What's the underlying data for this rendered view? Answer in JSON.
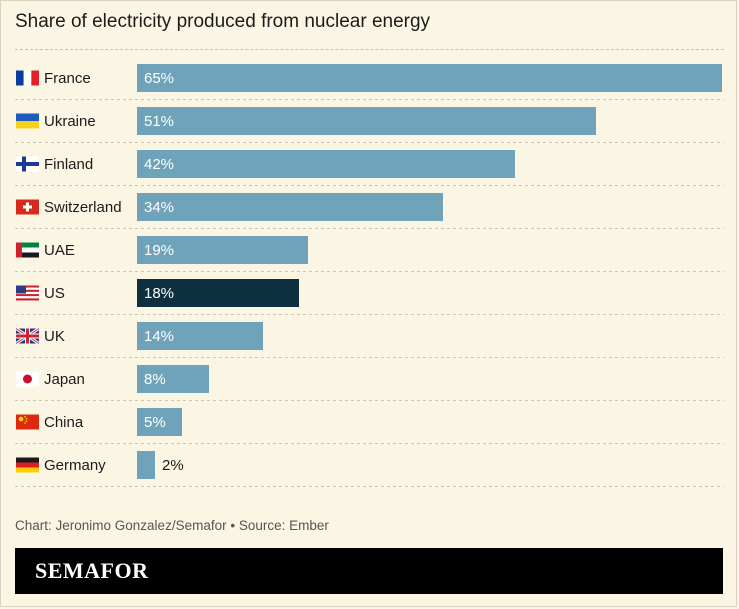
{
  "chart_data": {
    "type": "bar",
    "orientation": "horizontal",
    "title": "Share of electricity produced from nuclear energy",
    "categories": [
      "France",
      "Ukraine",
      "Finland",
      "Switzerland",
      "UAE",
      "US",
      "UK",
      "Japan",
      "China",
      "Germany"
    ],
    "values": [
      65,
      51,
      42,
      34,
      19,
      18,
      14,
      8,
      5,
      2
    ],
    "value_labels": [
      "65%",
      "51%",
      "42%",
      "34%",
      "19%",
      "18%",
      "14%",
      "8%",
      "5%",
      "2%"
    ],
    "flag_icons": [
      "france-flag-icon",
      "ukraine-flag-icon",
      "finland-flag-icon",
      "switzerland-flag-icon",
      "uae-flag-icon",
      "us-flag-icon",
      "uk-flag-icon",
      "japan-flag-icon",
      "china-flag-icon",
      "germany-flag-icon"
    ],
    "highlight": "US",
    "colors": {
      "bar": "#6fa3ba",
      "highlight": "#0d2f40",
      "background": "#fbf6e4"
    }
  },
  "credit": "Chart: Jeronimo Gonzalez/Semafor • Source: Ember",
  "footer": {
    "logo": "SEMAFOR"
  }
}
